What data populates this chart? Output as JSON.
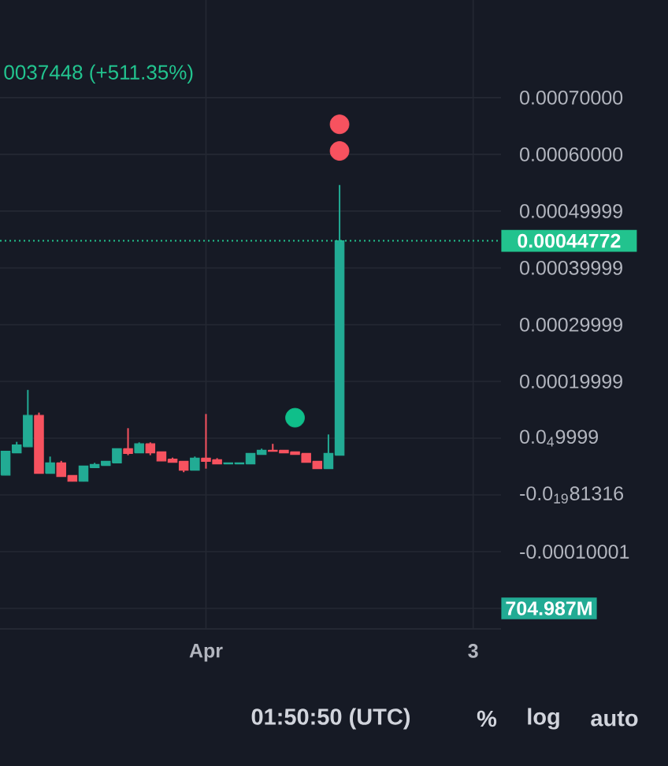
{
  "chart_data": {
    "type": "candlestick",
    "categories": [
      null,
      null,
      null,
      null,
      null,
      null,
      null,
      null,
      null,
      null,
      null,
      null,
      null,
      null,
      null,
      null,
      null,
      null,
      "Apr",
      null,
      null,
      null,
      null,
      null,
      null,
      null,
      null,
      null,
      null,
      null,
      null,
      null,
      null,
      null,
      null,
      null,
      null,
      null,
      null,
      null,
      null,
      null,
      "3",
      null,
      null
    ],
    "ohlc": [
      [
        3.5e-05,
        7.7e-05,
        3.5e-05,
        7.7e-05
      ],
      [
        7.4e-05,
        9.35e-05,
        7.4e-05,
        8.8e-05
      ],
      [
        8.5e-05,
        0.000185,
        8.5e-05,
        0.00014
      ],
      [
        0.00014,
        0.000145,
        3.8e-05,
        3.8e-05
      ],
      [
        3.8e-05,
        6.76e-05,
        3.8e-05,
        5.65e-05
      ],
      [
        5.65e-05,
        6e-05,
        3.24e-05,
        3.24e-05
      ],
      [
        3.43e-05,
        3.43e-05,
        2.4e-05,
        2.4e-05
      ],
      [
        2.4e-05,
        5.1e-05,
        2.4e-05,
        5.1e-05
      ],
      [
        4.8e-05,
        5.65e-05,
        4.8e-05,
        5.37e-05
      ],
      [
        5.2e-05,
        5.93e-05,
        5.2e-05,
        5.93e-05
      ],
      [
        5.65e-05,
        8.15e-05,
        5.65e-05,
        8.15e-05
      ],
      [
        8.15e-05,
        0.0001176,
        7e-05,
        7.3e-05
      ],
      [
        7.4e-05,
        9.26e-05,
        7.4e-05,
        9e-05
      ],
      [
        9e-05,
        9.26e-05,
        7e-05,
        7.4e-05
      ],
      [
        7.6e-05,
        7.6e-05,
        6e-05,
        6e-05
      ],
      [
        6.3e-05,
        6.57e-05,
        5.74e-05,
        5.74e-05
      ],
      [
        5.93e-05,
        5.93e-05,
        4e-05,
        4.35e-05
      ],
      [
        4.35e-05,
        6.76e-05,
        4.35e-05,
        6.48e-05
      ],
      [
        6.48e-05,
        0.0001426,
        4.63e-05,
        5.93e-05
      ],
      [
        6.2e-05,
        6.48e-05,
        5.46e-05,
        5.46e-05
      ],
      [
        5.46e-05,
        5.65e-05,
        5.46e-05,
        5.65e-05
      ],
      [
        5.46e-05,
        5.65e-05,
        5.46e-05,
        5.65e-05
      ],
      [
        5.46e-05,
        7.3e-05,
        5.46e-05,
        7.3e-05
      ],
      [
        7.13e-05,
        8.15e-05,
        7.13e-05,
        7.87e-05
      ],
      [
        7.87e-05,
        9e-05,
        7.7e-05,
        7.7e-05
      ],
      [
        7.87e-05,
        7.87e-05,
        7.4e-05,
        7.4e-05
      ],
      [
        7.6e-05,
        7.6e-05,
        7.13e-05,
        7.13e-05
      ],
      [
        7.3e-05,
        7.3e-05,
        5.74e-05,
        5.74e-05
      ],
      [
        5.93e-05,
        5.93e-05,
        4.63e-05,
        4.63e-05
      ],
      [
        4.63e-05,
        0.0001065,
        4.63e-05,
        7.3e-05
      ],
      [
        7e-05,
        0.000546,
        7e-05,
        0.00044772
      ],
      null,
      null,
      null,
      null,
      null,
      null,
      null,
      null,
      null,
      null,
      null,
      null,
      null,
      null
    ],
    "colors": [
      "#22ab94",
      "#22ab94",
      "#22ab94",
      "#f7525f",
      "#22ab94",
      "#f7525f",
      "#f7525f",
      "#22ab94",
      "#22ab94",
      "#22ab94",
      "#22ab94",
      "#f7525f",
      "#22ab94",
      "#f7525f",
      "#f7525f",
      "#f7525f",
      "#f7525f",
      "#22ab94",
      "#f7525f",
      "#f7525f",
      "#22ab94",
      "#22ab94",
      "#22ab94",
      "#22ab94",
      "#f7525f",
      "#f7525f",
      "#f7525f",
      "#f7525f",
      "#f7525f",
      "#22ab94",
      "#22ab94",
      null,
      null,
      null,
      null,
      null,
      null,
      null,
      null,
      null,
      null,
      null,
      null,
      null,
      null
    ],
    "series": [
      {
        "type": "scatter",
        "values": [
          null,
          null,
          null,
          null,
          null,
          null,
          null,
          null,
          null,
          null,
          null,
          null,
          null,
          null,
          null,
          null,
          null,
          null,
          null,
          null,
          null,
          null,
          null,
          null,
          null,
          null,
          null,
          null,
          null,
          null,
          0.000653,
          null,
          null,
          null,
          null,
          null,
          null,
          null,
          null,
          null,
          null,
          null,
          null,
          null,
          null
        ],
        "color": "#f7525f",
        "marker": "circle"
      },
      {
        "type": "scatter",
        "values": [
          null,
          null,
          null,
          null,
          null,
          null,
          null,
          null,
          null,
          null,
          null,
          null,
          null,
          null,
          null,
          null,
          null,
          null,
          null,
          null,
          null,
          null,
          null,
          null,
          null,
          null,
          null,
          null,
          null,
          null,
          0.000606,
          null,
          null,
          null,
          null,
          null,
          null,
          null,
          null,
          null,
          null,
          null,
          null,
          null,
          null
        ],
        "color": "#f7525f",
        "marker": "circle"
      },
      {
        "type": "scatter",
        "values": [
          null,
          null,
          null,
          null,
          null,
          null,
          null,
          null,
          null,
          null,
          null,
          null,
          null,
          null,
          null,
          null,
          null,
          null,
          null,
          null,
          null,
          null,
          null,
          null,
          null,
          null,
          0.000136,
          null,
          null,
          null,
          null,
          null,
          null,
          null,
          null,
          null,
          null,
          null,
          null,
          null,
          null,
          null,
          null,
          null,
          null
        ],
        "color": "#0fbf8a",
        "marker": "circle"
      }
    ],
    "ylim": [
      -0.000236,
      0.000872
    ],
    "yticks": [
      {
        "value": 0.0007,
        "label": "0.00070000"
      },
      {
        "value": 0.0006,
        "label": "0.00060000"
      },
      {
        "value": 0.00049999,
        "label": "0.00049999"
      },
      {
        "value": 0.00039999,
        "label": "0.00039999"
      },
      {
        "value": 0.00029999,
        "label": "0.00029999"
      },
      {
        "value": 0.00019999,
        "label": "0.00019999"
      },
      {
        "value": 9.9999e-05,
        "label": "0.0$_{4}$9999"
      },
      {
        "value": -9.81316e-20,
        "label": "-0.0$_{19}$81316"
      },
      {
        "value": -0.00010001,
        "label": "-0.00010001"
      },
      {
        "value": -0.00020001,
        "label": null
      }
    ],
    "grid": true,
    "ref_lines": [
      {
        "axis": "y",
        "value": 0.00044772,
        "label": "0.00044772",
        "color": "#22c38e",
        "line_style": "dotted"
      }
    ],
    "annotations": [
      "0037448 (+511.35%)",
      "01:50:50 (UTC)",
      "%",
      "log",
      "auto",
      "704.987M"
    ]
  }
}
